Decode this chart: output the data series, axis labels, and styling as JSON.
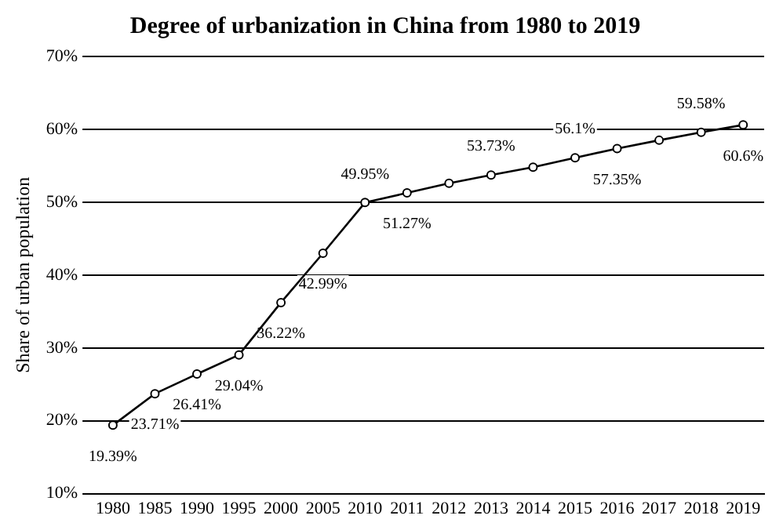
{
  "chart_data": {
    "type": "line",
    "title": "Degree of urbanization in China from 1980 to 2019",
    "ylabel": "Share of urban population",
    "categories": [
      "1980",
      "1985",
      "1990",
      "1995",
      "2000",
      "2005",
      "2010",
      "2011",
      "2012",
      "2013",
      "2014",
      "2015",
      "2016",
      "2017",
      "2018",
      "2019"
    ],
    "series": [
      {
        "color": "#000000",
        "values": [
          19.39,
          23.71,
          26.41,
          29.04,
          36.22,
          42.99,
          49.95,
          51.27,
          52.6,
          53.73,
          54.8,
          56.1,
          57.35,
          58.5,
          59.58,
          60.6
        ],
        "value_labels": [
          "19.39%",
          "23.71%",
          "26.41%",
          "29.04%",
          "36.22%",
          "42.99%",
          "49.95%",
          "51.27%",
          null,
          "53.73%",
          null,
          "56.1%",
          "57.35%",
          null,
          "59.58%",
          "60.6%"
        ]
      }
    ],
    "ylim": [
      10,
      70
    ],
    "yticks": [
      {
        "value": 10,
        "label": "10%"
      },
      {
        "value": 20,
        "label": "20%"
      },
      {
        "value": 30,
        "label": "30%"
      },
      {
        "value": 40,
        "label": "40%"
      },
      {
        "value": 50,
        "label": "50%"
      },
      {
        "value": 60,
        "label": "60%"
      },
      {
        "value": 70,
        "label": "70%"
      }
    ],
    "grid": "y",
    "marker": "circle",
    "line_style": "solid",
    "legend": false
  }
}
